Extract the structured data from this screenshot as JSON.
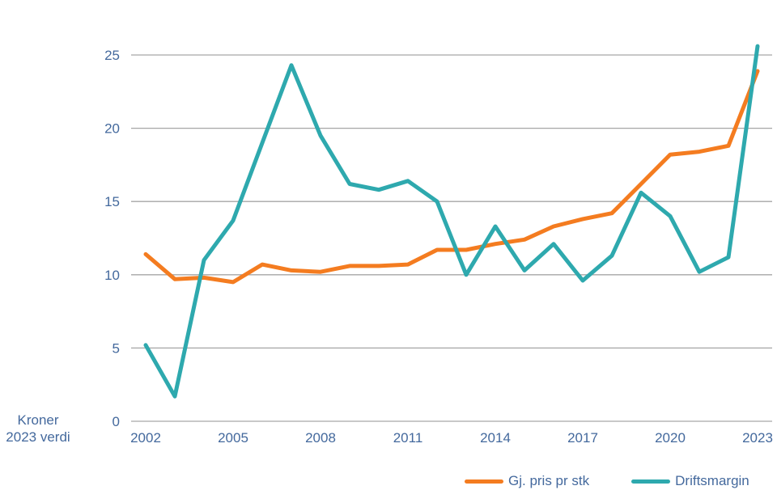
{
  "colors": {
    "price_line": "#F47C20",
    "margin_line": "#2EA9AE",
    "gridline": "#A6A6A6",
    "text": "#44699D"
  },
  "y_axis": {
    "label_line1": "Kroner",
    "label_line2": "2023 verdi"
  },
  "legend": {
    "position": "bottom",
    "items": [
      "Gj. pris pr stk",
      "Driftsmargin"
    ]
  },
  "chart_data": {
    "type": "line",
    "title": "",
    "xlabel": "",
    "ylabel": "Kroner 2023 verdi",
    "ylim": [
      0,
      25
    ],
    "yticks": [
      0,
      5,
      10,
      15,
      20,
      25
    ],
    "xticks": [
      2002,
      2005,
      2008,
      2011,
      2014,
      2017,
      2020,
      2023
    ],
    "grid": true,
    "legend_position": "bottom",
    "x": [
      2002,
      2003,
      2004,
      2005,
      2006,
      2007,
      2008,
      2009,
      2010,
      2011,
      2012,
      2013,
      2014,
      2015,
      2016,
      2017,
      2018,
      2019,
      2020,
      2021,
      2022,
      2023
    ],
    "series": [
      {
        "name": "Gj. pris pr stk",
        "color": "#F47C20",
        "values": [
          11.4,
          9.7,
          9.8,
          9.5,
          10.7,
          10.3,
          10.2,
          10.6,
          10.6,
          10.7,
          11.7,
          11.7,
          12.1,
          12.4,
          13.3,
          13.8,
          14.2,
          16.2,
          18.2,
          18.4,
          18.8,
          23.9
        ]
      },
      {
        "name": "Driftsmargin",
        "color": "#2EA9AE",
        "values": [
          5.2,
          1.7,
          11.0,
          13.7,
          19.0,
          24.3,
          19.5,
          16.2,
          15.8,
          16.4,
          15.0,
          10.0,
          13.3,
          10.3,
          12.1,
          9.6,
          11.3,
          15.6,
          14.0,
          10.2,
          11.2,
          25.6
        ]
      }
    ]
  }
}
